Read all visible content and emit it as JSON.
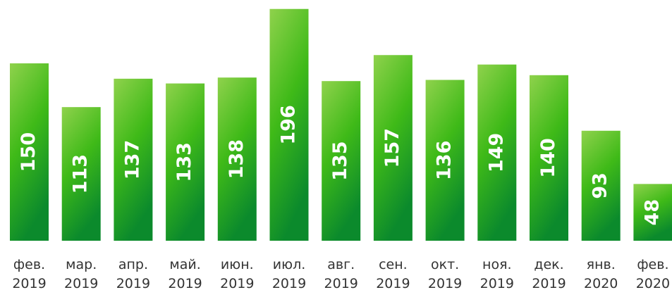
{
  "chart_data": {
    "type": "bar",
    "categories": [
      "фев. 2019",
      "мар. 2019",
      "апр. 2019",
      "май. 2019",
      "июн. 2019",
      "июл. 2019",
      "авг. 2019",
      "сен. 2019",
      "окт. 2019",
      "ноя. 2019",
      "дек. 2019",
      "янв. 2020",
      "фев. 2020"
    ],
    "values": [
      150,
      113,
      137,
      133,
      138,
      196,
      135,
      157,
      136,
      149,
      140,
      93,
      48
    ],
    "color": "#3fba18",
    "ylim": [
      0,
      200
    ]
  }
}
